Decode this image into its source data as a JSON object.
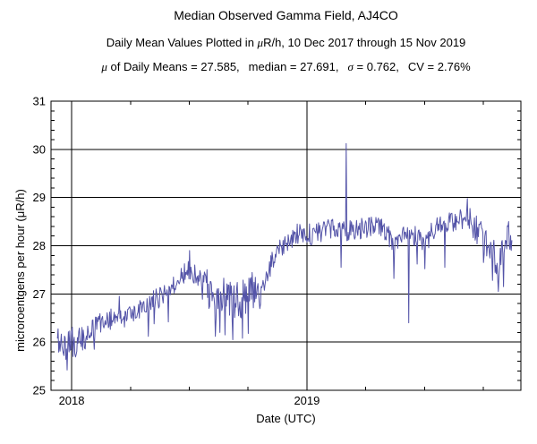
{
  "header": {
    "title": "Median Observed Gamma Field, AJ4CO",
    "subtitle": {
      "prefix": "Daily Mean Values Plotted in ",
      "mu": "μ",
      "suffix": "R/h, 10 Dec 2017 through 15 Nov 2019"
    },
    "stats": {
      "mu_symbol": "μ",
      "mu_label": " of Daily Means = ",
      "mu_value": "27.585,",
      "median_label": "median = ",
      "median_value": "27.691,",
      "sigma_symbol": "σ",
      "sigma_label": " = ",
      "sigma_value": "0.762,",
      "cv_label": "CV = ",
      "cv_value": "2.76%"
    }
  },
  "chart_data": {
    "type": "line",
    "title": "Median Observed Gamma Field, AJ4CO",
    "xlabel": "Date (UTC)",
    "ylabel": "microroentgens per hour (μR/h)",
    "x_start_date": "2017-12-10",
    "x_end_date": "2019-11-15",
    "num_days": 706,
    "xlim_days": [
      -10,
      719
    ],
    "ylim": [
      25,
      31
    ],
    "y_major_step": 1,
    "y_minor_step": 0.2,
    "x_year_ticks": [
      {
        "label": "2018",
        "day": 22
      },
      {
        "label": "2019",
        "day": 387
      }
    ],
    "x_minor_ticks_days": [
      113.25,
      204.5,
      295.75,
      478.25,
      569.5,
      660.75
    ],
    "grid": true,
    "legend": "none",
    "line_color": "#5454a8",
    "stats": {
      "mean": 27.585,
      "median": 27.691,
      "sigma": 0.762,
      "cv_percent": 2.76
    },
    "trend_anchors": [
      [
        0,
        26.0
      ],
      [
        8,
        25.95
      ],
      [
        16,
        25.9
      ],
      [
        22,
        26.05
      ],
      [
        30,
        25.95
      ],
      [
        40,
        26.1
      ],
      [
        50,
        26.25
      ],
      [
        64,
        26.4
      ],
      [
        78,
        26.4
      ],
      [
        92,
        26.6
      ],
      [
        105,
        26.45
      ],
      [
        119,
        26.6
      ],
      [
        133,
        26.75
      ],
      [
        147,
        26.85
      ],
      [
        161,
        26.95
      ],
      [
        175,
        27.15
      ],
      [
        189,
        27.3
      ],
      [
        203,
        27.5
      ],
      [
        217,
        27.4
      ],
      [
        231,
        27.15
      ],
      [
        245,
        26.85
      ],
      [
        259,
        26.95
      ],
      [
        273,
        26.8
      ],
      [
        287,
        26.9
      ],
      [
        301,
        27.1
      ],
      [
        315,
        27.05
      ],
      [
        329,
        27.55
      ],
      [
        343,
        27.9
      ],
      [
        357,
        28.1
      ],
      [
        371,
        28.25
      ],
      [
        385,
        28.3
      ],
      [
        397,
        28.2
      ],
      [
        411,
        28.3
      ],
      [
        425,
        28.35
      ],
      [
        439,
        28.3
      ],
      [
        455,
        28.3
      ],
      [
        470,
        28.35
      ],
      [
        482,
        28.4
      ],
      [
        494,
        28.45
      ],
      [
        508,
        28.3
      ],
      [
        522,
        28.05
      ],
      [
        536,
        28.2
      ],
      [
        548,
        28.15
      ],
      [
        556,
        28.2
      ],
      [
        570,
        28.0
      ],
      [
        584,
        28.35
      ],
      [
        598,
        28.45
      ],
      [
        612,
        28.5
      ],
      [
        626,
        28.55
      ],
      [
        636,
        28.6
      ],
      [
        647,
        28.35
      ],
      [
        661,
        28.1
      ],
      [
        668,
        27.95
      ],
      [
        675,
        27.85
      ],
      [
        684,
        27.6
      ],
      [
        691,
        27.9
      ],
      [
        700,
        28.25
      ],
      [
        705,
        28.0
      ]
    ],
    "spikes": [
      [
        15,
        25.42
      ],
      [
        24,
        25.7
      ],
      [
        57,
        25.85
      ],
      [
        96,
        26.95
      ],
      [
        141,
        26.12
      ],
      [
        150,
        26.38
      ],
      [
        172,
        26.42
      ],
      [
        205,
        27.9
      ],
      [
        245,
        26.12
      ],
      [
        252,
        26.2
      ],
      [
        260,
        26.15
      ],
      [
        272,
        26.05
      ],
      [
        287,
        26.08
      ],
      [
        296,
        26.18
      ],
      [
        440,
        27.55
      ],
      [
        448,
        30.12
      ],
      [
        522,
        27.32
      ],
      [
        545,
        26.4
      ],
      [
        558,
        27.62
      ],
      [
        570,
        27.52
      ],
      [
        601,
        27.55
      ],
      [
        636,
        28.98
      ],
      [
        661,
        27.65
      ],
      [
        675,
        27.28
      ],
      [
        684,
        27.05
      ],
      [
        692,
        27.15
      ]
    ],
    "noise": {
      "amplitude": 0.22,
      "seed": 20171210
    },
    "noise_regions": [
      {
        "from": 0,
        "to": 45,
        "factor": 1.35
      },
      {
        "from": 223,
        "to": 320,
        "factor": 1.8
      },
      {
        "from": 640,
        "to": 705,
        "factor": 1.5
      }
    ]
  }
}
